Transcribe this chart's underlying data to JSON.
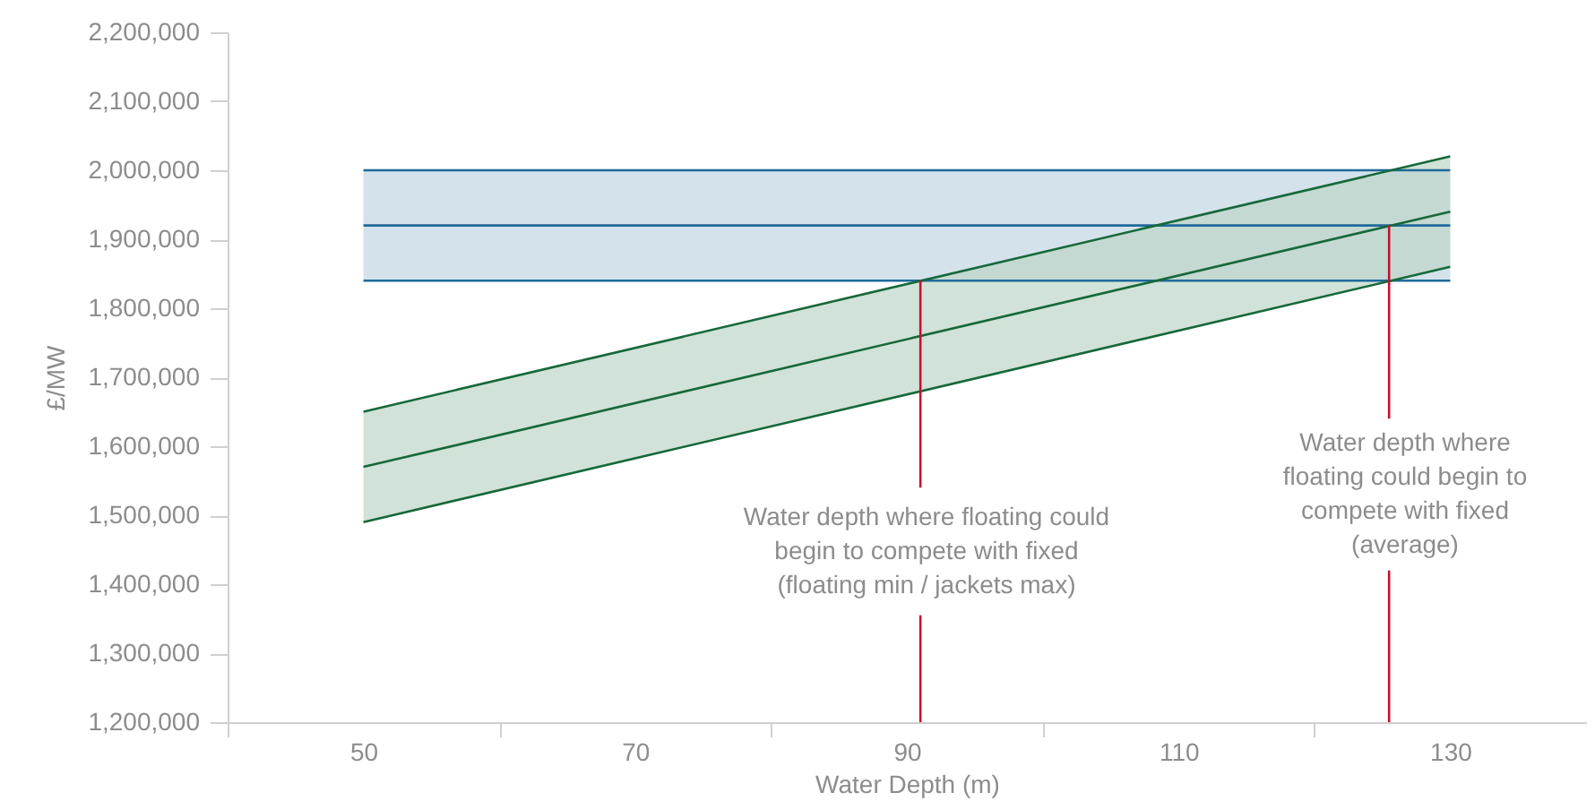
{
  "chart_data": {
    "type": "line",
    "xlabel": "Water Depth (m)",
    "ylabel": "£/MW",
    "xlim": [
      40,
      140
    ],
    "xticks": [
      {
        "value": 40,
        "label": null
      },
      50,
      {
        "value": 60,
        "label": null
      },
      70,
      {
        "value": 80,
        "label": null
      },
      90,
      {
        "value": 100,
        "label": null
      },
      110,
      {
        "value": 120,
        "label": null
      },
      130
    ],
    "ylim": [
      1200000,
      2200000
    ],
    "yticks": [
      {
        "value": 1200000,
        "label": "1,200,000"
      },
      {
        "value": 1300000,
        "label": "1,300,000"
      },
      {
        "value": 1400000,
        "label": "1,400,000"
      },
      {
        "value": 1500000,
        "label": "1,500,000"
      },
      {
        "value": 1600000,
        "label": "1,600,000"
      },
      {
        "value": 1700000,
        "label": "1,700,000"
      },
      {
        "value": 1800000,
        "label": "1,800,000"
      },
      {
        "value": 1900000,
        "label": "1,900,000"
      },
      {
        "value": 2000000,
        "label": "2,000,000"
      },
      {
        "value": 2100000,
        "label": "2,100,000"
      },
      {
        "value": 2200000,
        "label": "2,200,000"
      }
    ],
    "series": [
      {
        "color": "#1f6a9a",
        "x": [
          50,
          130
        ],
        "values": [
          1920000,
          1920000
        ],
        "lower": [
          1840000,
          1840000
        ],
        "upper": [
          2000000,
          2000000
        ]
      },
      {
        "color": "#1f6a9a",
        "x": [
          50,
          130
        ],
        "values": [
          1840000,
          1840000
        ]
      },
      {
        "color": "#1f6a9a",
        "x": [
          50,
          130
        ],
        "values": [
          2000000,
          2000000
        ]
      },
      {
        "color": "#16683a",
        "x": [
          50,
          130
        ],
        "values": [
          1570000,
          1940000
        ],
        "lower": [
          1490000,
          1860000
        ],
        "upper": [
          1650000,
          2020000
        ]
      },
      {
        "color": "#16683a",
        "x": [
          50,
          130
        ],
        "values": [
          1490000,
          1860000
        ]
      },
      {
        "color": "#16683a",
        "x": [
          50,
          130
        ],
        "values": [
          1650000,
          2020000
        ]
      },
      {
        "color": "#c8102e",
        "x": [
          91,
          91
        ],
        "values": [
          1200000,
          1355000
        ]
      },
      {
        "color": "#c8102e",
        "x": [
          91,
          91
        ],
        "values": [
          1540000,
          1840000
        ]
      },
      {
        "color": "#c8102e",
        "x": [
          125.5,
          125.5
        ],
        "values": [
          1200000,
          1420000
        ]
      },
      {
        "color": "#c8102e",
        "x": [
          125.5,
          125.5
        ],
        "values": [
          1640000,
          1920000
        ]
      }
    ],
    "annotations": [
      "Water depth where floating could\nbegin to compete with fixed\n(floating min / jackets max)",
      "Water depth where\nfloating could begin to\ncompete with fixed\n(average)"
    ],
    "grid": false
  }
}
